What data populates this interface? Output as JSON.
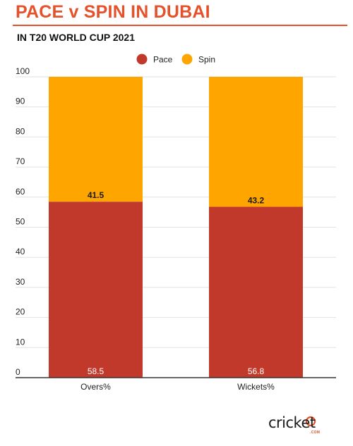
{
  "header": {
    "title": "PACE v SPIN IN DUBAI",
    "subtitle": "IN T20 WORLD CUP 2021"
  },
  "brand": {
    "logo_text": "cricket",
    "logo_sub": ".COM"
  },
  "chart_data": {
    "type": "bar",
    "stacked": true,
    "categories": [
      "Overs%",
      "Wickets%"
    ],
    "series": [
      {
        "name": "Pace",
        "values": [
          58.5,
          56.8
        ],
        "color": "#c0392b"
      },
      {
        "name": "Spin",
        "values": [
          41.5,
          43.2
        ],
        "color": "#ffa500"
      }
    ],
    "ylim": [
      0,
      100
    ],
    "yticks": [
      0,
      10,
      20,
      30,
      40,
      50,
      60,
      70,
      80,
      90,
      100
    ],
    "grid": true,
    "legend_position": "top-center",
    "colors": {
      "title": "#e4512b",
      "pace": "#c0392b",
      "spin": "#ffa500"
    }
  }
}
